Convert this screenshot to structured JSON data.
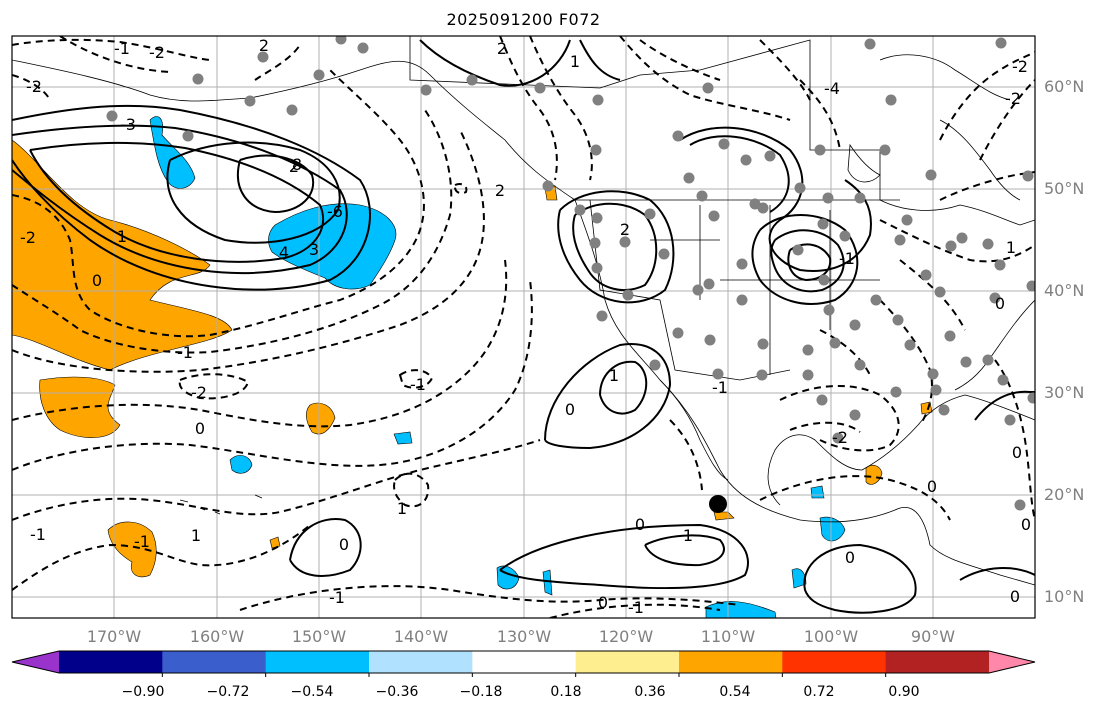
{
  "title": "2025091200 F072",
  "lat_labels": [
    "60°N",
    "50°N",
    "40°N",
    "30°N",
    "20°N",
    "10°N"
  ],
  "lon_labels": [
    "170°W",
    "160°W",
    "150°W",
    "140°W",
    "130°W",
    "120°W",
    "110°W",
    "100°W",
    "90°W"
  ],
  "colorbar": {
    "tick_labels": [
      "−0.90",
      "−0.72",
      "−0.54",
      "−0.36",
      "−0.18",
      "0.18",
      "0.36",
      "0.54",
      "0.72",
      "0.90"
    ],
    "colors": [
      "#9933cc",
      "#00008b",
      "#3a5fcd",
      "#00bfff",
      "#b0e2ff",
      "#ffffff",
      "#ffee90",
      "#ffa500",
      "#ff3300",
      "#b22222",
      "#ff88aa"
    ]
  },
  "contour_labels": [
    "-1",
    "-2",
    "2",
    "-3",
    "-2",
    "2",
    "8",
    "-6",
    "4",
    "3",
    "0",
    "-1",
    "1",
    "-2",
    "-2",
    "0",
    "1",
    "1",
    "-1",
    "-1",
    "0",
    "-1",
    "0",
    "-1",
    "0",
    "1",
    "0",
    "-1",
    "0",
    "2",
    "-4",
    "1",
    "2",
    "1",
    "0",
    "-2",
    "-2",
    "-1",
    "-2",
    "-1",
    "0",
    "2",
    "0",
    "0",
    "1",
    "0"
  ],
  "colors": {
    "positive_fill": "#ffa500",
    "negative_fill": "#00bfff",
    "light_negative_fill": "#b0e2ff",
    "grid": "#b0b0b0",
    "station_dot": "#808080",
    "marker": "#000000"
  }
}
